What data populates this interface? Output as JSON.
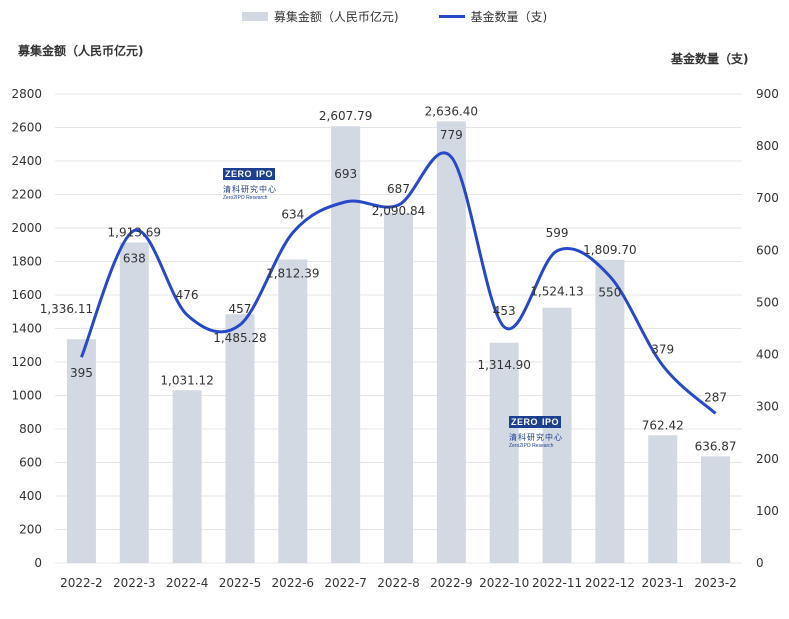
{
  "legend": {
    "bar_label": "募集金额（人民币亿元)",
    "line_label": "基金数量（支)"
  },
  "axis_titles": {
    "left": "募集金额（人民币亿元)",
    "right": "基金数量（支)"
  },
  "watermark": {
    "mark_left": "ZERO",
    "mark_right": "IPO",
    "cn": "清科研究中心",
    "en": "Zero2IPO Research"
  },
  "colors": {
    "bar": "#d3d9e3",
    "line": "#2748c8",
    "grid": "#e6e6e6",
    "text": "#333333"
  },
  "chart_data": {
    "type": "bar",
    "categories": [
      "2022-2",
      "2022-3",
      "2022-4",
      "2022-5",
      "2022-6",
      "2022-7",
      "2022-8",
      "2022-9",
      "2022-10",
      "2022-11",
      "2022-12",
      "2023-1",
      "2023-2"
    ],
    "series": [
      {
        "name": "募集金额（人民币亿元)",
        "type": "bar",
        "axis": "left",
        "values": [
          1336.11,
          1913.69,
          1031.12,
          1485.28,
          1812.39,
          2607.79,
          2090.84,
          2636.4,
          1314.9,
          1524.13,
          1809.7,
          762.42,
          636.87
        ],
        "labels": [
          "1,336.11",
          "1,913.69",
          "1,031.12",
          "1,485.28",
          "1,812.39",
          "2,607.79",
          "2,090.84",
          "2,636.40",
          "1,314.90",
          "1,524.13",
          "1,809.70",
          "762.42",
          "636.87"
        ]
      },
      {
        "name": "基金数量（支)",
        "type": "line",
        "axis": "right",
        "smooth": true,
        "values": [
          395,
          638,
          476,
          457,
          634,
          693,
          687,
          779,
          453,
          599,
          550,
          379,
          287
        ]
      }
    ],
    "left_axis": {
      "range": [
        0,
        2800
      ],
      "ticks": [
        "0",
        "200",
        "400",
        "600",
        "800",
        "1000",
        "1200",
        "1400",
        "1600",
        "1800",
        "2000",
        "2200",
        "2400",
        "2600",
        "2800"
      ]
    },
    "right_axis": {
      "range": [
        0,
        900
      ],
      "ticks": [
        "0",
        "100",
        "200",
        "300",
        "400",
        "500",
        "600",
        "700",
        "800",
        "900"
      ]
    },
    "grid": true,
    "legend_position": "top-center"
  }
}
